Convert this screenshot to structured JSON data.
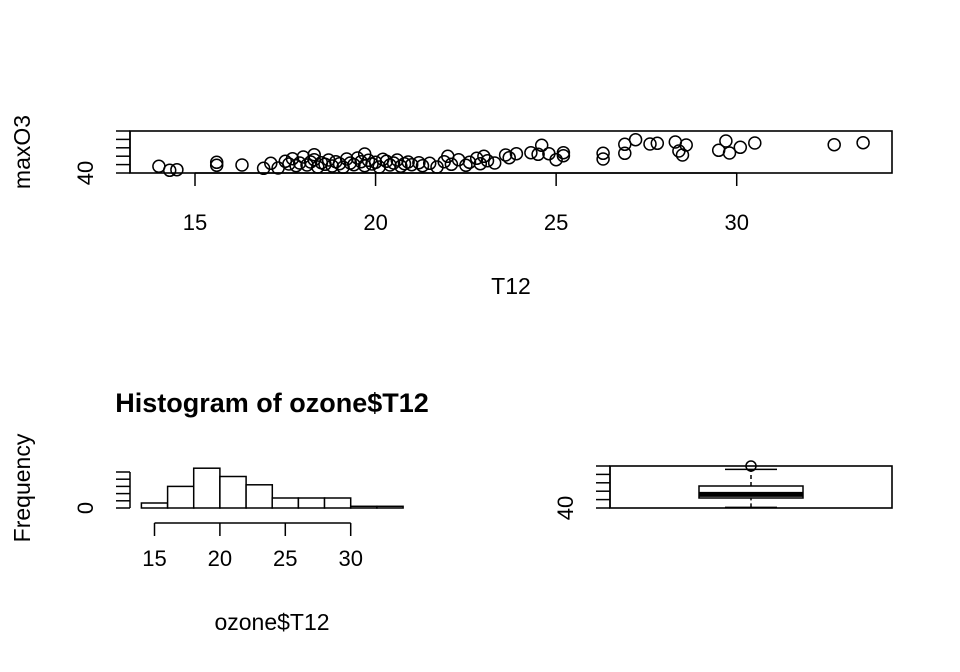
{
  "chart_data": [
    {
      "type": "scatter",
      "title": "",
      "xlabel": "T12",
      "ylabel": "maxO3",
      "xlim": [
        13.2,
        34.3
      ],
      "ylim": [
        40,
        166
      ],
      "x_ticks": [
        15,
        20,
        25,
        30
      ],
      "y_ticks": [
        40
      ],
      "point_style": "open-circle",
      "grid": false,
      "points": [
        {
          "x": 14.0,
          "y": 60
        },
        {
          "x": 14.3,
          "y": 48
        },
        {
          "x": 14.5,
          "y": 50
        },
        {
          "x": 15.6,
          "y": 63
        },
        {
          "x": 15.6,
          "y": 72
        },
        {
          "x": 16.3,
          "y": 64
        },
        {
          "x": 16.9,
          "y": 54
        },
        {
          "x": 17.1,
          "y": 69
        },
        {
          "x": 17.3,
          "y": 55
        },
        {
          "x": 17.5,
          "y": 75
        },
        {
          "x": 17.6,
          "y": 67
        },
        {
          "x": 17.7,
          "y": 83
        },
        {
          "x": 17.8,
          "y": 62
        },
        {
          "x": 17.9,
          "y": 70
        },
        {
          "x": 18.0,
          "y": 88
        },
        {
          "x": 18.1,
          "y": 64
        },
        {
          "x": 18.2,
          "y": 73
        },
        {
          "x": 18.3,
          "y": 95
        },
        {
          "x": 18.3,
          "y": 80
        },
        {
          "x": 18.4,
          "y": 58
        },
        {
          "x": 18.5,
          "y": 71
        },
        {
          "x": 18.6,
          "y": 66
        },
        {
          "x": 18.7,
          "y": 79
        },
        {
          "x": 18.8,
          "y": 61
        },
        {
          "x": 18.9,
          "y": 74
        },
        {
          "x": 19.0,
          "y": 68
        },
        {
          "x": 19.1,
          "y": 57
        },
        {
          "x": 19.2,
          "y": 82
        },
        {
          "x": 19.3,
          "y": 70
        },
        {
          "x": 19.4,
          "y": 65
        },
        {
          "x": 19.5,
          "y": 85
        },
        {
          "x": 19.6,
          "y": 74
        },
        {
          "x": 19.7,
          "y": 97
        },
        {
          "x": 19.7,
          "y": 62
        },
        {
          "x": 19.8,
          "y": 78
        },
        {
          "x": 19.9,
          "y": 67
        },
        {
          "x": 20.0,
          "y": 72
        },
        {
          "x": 20.1,
          "y": 58
        },
        {
          "x": 20.2,
          "y": 81
        },
        {
          "x": 20.3,
          "y": 75
        },
        {
          "x": 20.4,
          "y": 64
        },
        {
          "x": 20.5,
          "y": 70
        },
        {
          "x": 20.6,
          "y": 79
        },
        {
          "x": 20.7,
          "y": 60
        },
        {
          "x": 20.8,
          "y": 68
        },
        {
          "x": 20.9,
          "y": 73
        },
        {
          "x": 21.0,
          "y": 65
        },
        {
          "x": 21.2,
          "y": 71
        },
        {
          "x": 21.3,
          "y": 62
        },
        {
          "x": 21.5,
          "y": 69
        },
        {
          "x": 21.7,
          "y": 58
        },
        {
          "x": 21.9,
          "y": 74
        },
        {
          "x": 22.0,
          "y": 90
        },
        {
          "x": 22.1,
          "y": 66
        },
        {
          "x": 22.3,
          "y": 80
        },
        {
          "x": 22.5,
          "y": 63
        },
        {
          "x": 22.6,
          "y": 72
        },
        {
          "x": 22.8,
          "y": 84
        },
        {
          "x": 22.9,
          "y": 68
        },
        {
          "x": 23.0,
          "y": 90
        },
        {
          "x": 23.1,
          "y": 77
        },
        {
          "x": 23.3,
          "y": 70
        },
        {
          "x": 23.6,
          "y": 94
        },
        {
          "x": 23.7,
          "y": 86
        },
        {
          "x": 23.9,
          "y": 98
        },
        {
          "x": 24.3,
          "y": 101
        },
        {
          "x": 24.5,
          "y": 96
        },
        {
          "x": 24.6,
          "y": 123
        },
        {
          "x": 24.8,
          "y": 98
        },
        {
          "x": 25.0,
          "y": 80
        },
        {
          "x": 25.2,
          "y": 92
        },
        {
          "x": 25.2,
          "y": 101
        },
        {
          "x": 26.3,
          "y": 82
        },
        {
          "x": 26.3,
          "y": 99
        },
        {
          "x": 26.9,
          "y": 99
        },
        {
          "x": 26.9,
          "y": 126
        },
        {
          "x": 27.2,
          "y": 140
        },
        {
          "x": 27.6,
          "y": 127
        },
        {
          "x": 27.8,
          "y": 129
        },
        {
          "x": 28.3,
          "y": 133
        },
        {
          "x": 28.4,
          "y": 106
        },
        {
          "x": 28.5,
          "y": 94
        },
        {
          "x": 28.6,
          "y": 124
        },
        {
          "x": 29.5,
          "y": 108
        },
        {
          "x": 29.7,
          "y": 136
        },
        {
          "x": 29.8,
          "y": 100
        },
        {
          "x": 30.1,
          "y": 117
        },
        {
          "x": 30.5,
          "y": 130
        },
        {
          "x": 32.7,
          "y": 125
        },
        {
          "x": 33.5,
          "y": 131
        }
      ]
    },
    {
      "type": "bar",
      "title": "Histogram of ozone$T12",
      "xlabel": "ozone$T12",
      "ylabel": "Frequency",
      "x_ticks": [
        15,
        20,
        25,
        30
      ],
      "y_ticks": [
        0
      ],
      "ylim": [
        0,
        25
      ],
      "bins": [
        {
          "from": 14,
          "to": 16,
          "count": 3
        },
        {
          "from": 16,
          "to": 18,
          "count": 13
        },
        {
          "from": 18,
          "to": 20,
          "count": 24
        },
        {
          "from": 20,
          "to": 22,
          "count": 19
        },
        {
          "from": 22,
          "to": 24,
          "count": 14
        },
        {
          "from": 24,
          "to": 26,
          "count": 6
        },
        {
          "from": 26,
          "to": 28,
          "count": 6
        },
        {
          "from": 28,
          "to": 30,
          "count": 6
        },
        {
          "from": 30,
          "to": 32,
          "count": 1
        },
        {
          "from": 32,
          "to": 34,
          "count": 1
        }
      ]
    },
    {
      "type": "box",
      "title": "",
      "y_ticks": [
        40
      ],
      "ylim": [
        40,
        166
      ],
      "whisker_low": 42,
      "q1": 70,
      "median": 81,
      "q3": 106,
      "whisker_high": 156,
      "outliers": [
        166
      ]
    }
  ]
}
